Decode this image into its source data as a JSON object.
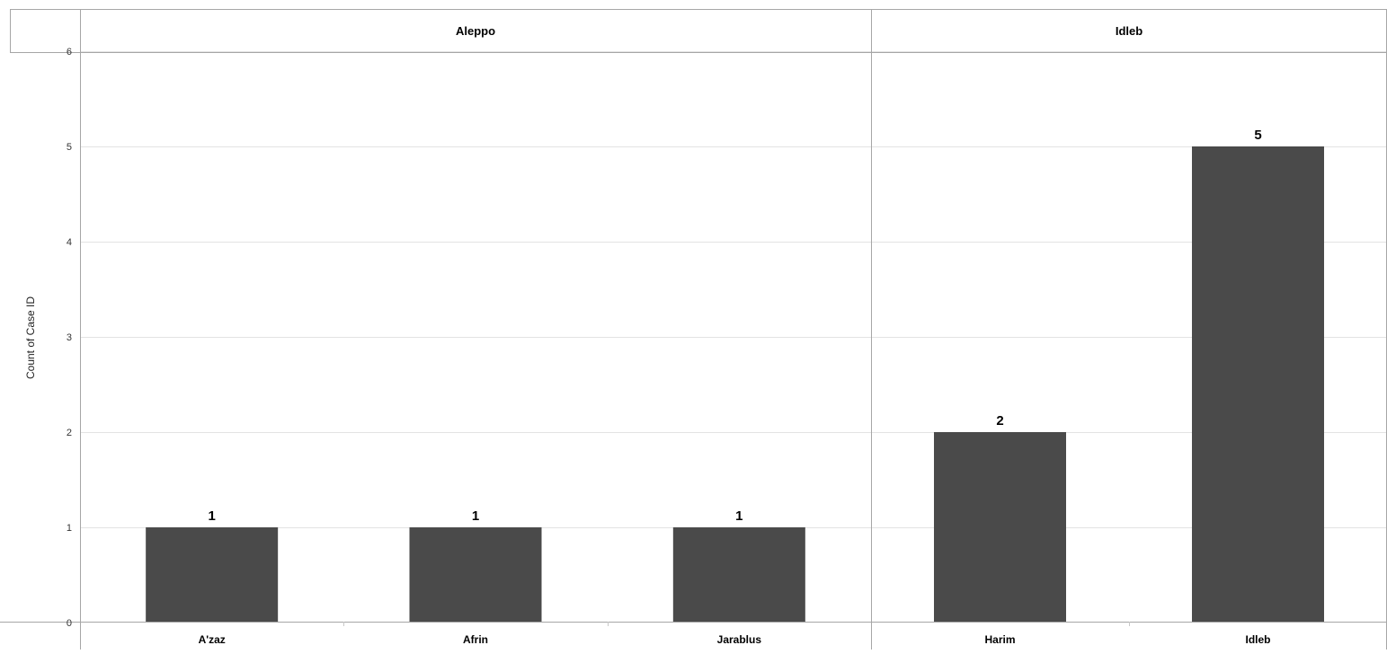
{
  "chart_data": {
    "type": "bar",
    "title": "",
    "ylabel": "Count of Case ID",
    "xlabel": "",
    "ylim": [
      0,
      6
    ],
    "yticks": [
      0,
      1,
      2,
      3,
      4,
      5,
      6
    ],
    "grid": true,
    "bar_color": "#4a4a4a",
    "panels": [
      {
        "name": "Aleppo",
        "categories": [
          "A'zaz",
          "Afrin",
          "Jarablus"
        ],
        "values": [
          1,
          1,
          1
        ]
      },
      {
        "name": "Idleb",
        "categories": [
          "Harim",
          "Idleb"
        ],
        "values": [
          2,
          5
        ]
      }
    ]
  }
}
